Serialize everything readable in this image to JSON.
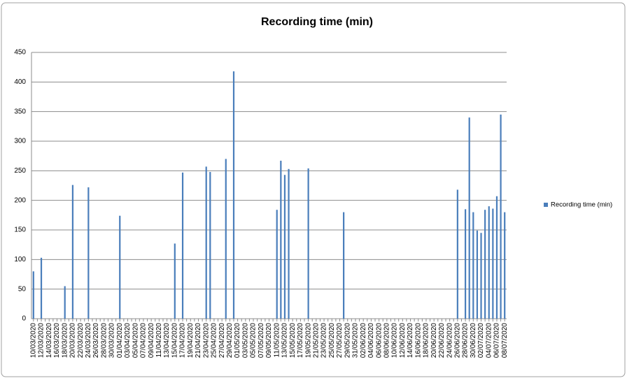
{
  "chart_data": {
    "type": "bar",
    "title": "Recording time (min)",
    "categories": [
      "10/03/2020",
      null,
      "12/03/2020",
      null,
      "14/03/2020",
      null,
      "16/03/2020",
      null,
      "18/03/2020",
      null,
      "20/03/2020",
      null,
      "22/03/2020",
      null,
      "24/03/2020",
      null,
      "26/03/2020",
      null,
      "28/03/2020",
      null,
      "30/03/2020",
      null,
      "01/04/2020",
      null,
      "03/04/2020",
      null,
      "05/04/2020",
      null,
      "07/04/2020",
      null,
      "09/04/2020",
      null,
      "11/04/2020",
      null,
      "13/04/2020",
      null,
      "15/04/2020",
      null,
      "17/04/2020",
      null,
      "19/04/2020",
      null,
      "21/04/2020",
      null,
      "23/04/2020",
      null,
      "25/04/2020",
      null,
      "27/04/2020",
      null,
      "29/04/2020",
      null,
      "01/05/2020",
      null,
      "03/05/2020",
      null,
      "05/05/2020",
      null,
      "07/05/2020",
      null,
      "09/05/2020",
      null,
      "11/05/2020",
      null,
      "13/05/2020",
      null,
      "15/05/2020",
      null,
      "17/05/2020",
      null,
      "19/05/2020",
      null,
      "21/05/2020",
      null,
      "23/05/2020",
      null,
      "25/05/2020",
      null,
      "27/05/2020",
      null,
      "29/05/2020",
      null,
      "31/05/2020",
      null,
      "02/06/2020",
      null,
      "04/06/2020",
      null,
      "06/06/2020",
      null,
      "08/06/2020",
      null,
      "10/06/2020",
      null,
      "12/06/2020",
      null,
      "14/06/2020",
      null,
      "16/06/2020",
      null,
      "18/06/2020",
      null,
      "20/06/2020",
      null,
      "22/06/2020",
      null,
      "24/06/2020",
      null,
      "26/06/2020",
      null,
      "28/06/2020",
      null,
      "30/06/2020",
      null,
      "02/07/2020",
      null,
      "04/07/2020",
      null,
      "06/07/2020",
      null,
      "08/07/2020"
    ],
    "series": [
      {
        "name": "Recording time (min)",
        "color": "#4a7ebb",
        "values": [
          80,
          null,
          103,
          null,
          null,
          null,
          null,
          null,
          55,
          null,
          226,
          null,
          null,
          null,
          222,
          null,
          null,
          null,
          null,
          null,
          null,
          null,
          174,
          null,
          null,
          null,
          null,
          null,
          null,
          null,
          null,
          null,
          null,
          null,
          null,
          null,
          127,
          null,
          247,
          null,
          null,
          null,
          null,
          null,
          257,
          248,
          null,
          null,
          null,
          270,
          null,
          418,
          null,
          null,
          null,
          null,
          null,
          null,
          null,
          null,
          null,
          null,
          184,
          267,
          243,
          253,
          null,
          null,
          null,
          null,
          254,
          null,
          null,
          null,
          null,
          null,
          null,
          null,
          null,
          180,
          null,
          null,
          null,
          null,
          null,
          null,
          null,
          null,
          null,
          null,
          null,
          null,
          null,
          null,
          null,
          null,
          null,
          null,
          null,
          null,
          null,
          null,
          null,
          null,
          null,
          null,
          null,
          null,
          218,
          null,
          185,
          340,
          180,
          149,
          145,
          184,
          190,
          186,
          207,
          345,
          180
        ]
      }
    ],
    "ylim": [
      0,
      450
    ],
    "yticks": [
      0,
      50,
      100,
      150,
      200,
      250,
      300,
      350,
      400,
      450
    ],
    "grid": true,
    "legend": "right"
  }
}
